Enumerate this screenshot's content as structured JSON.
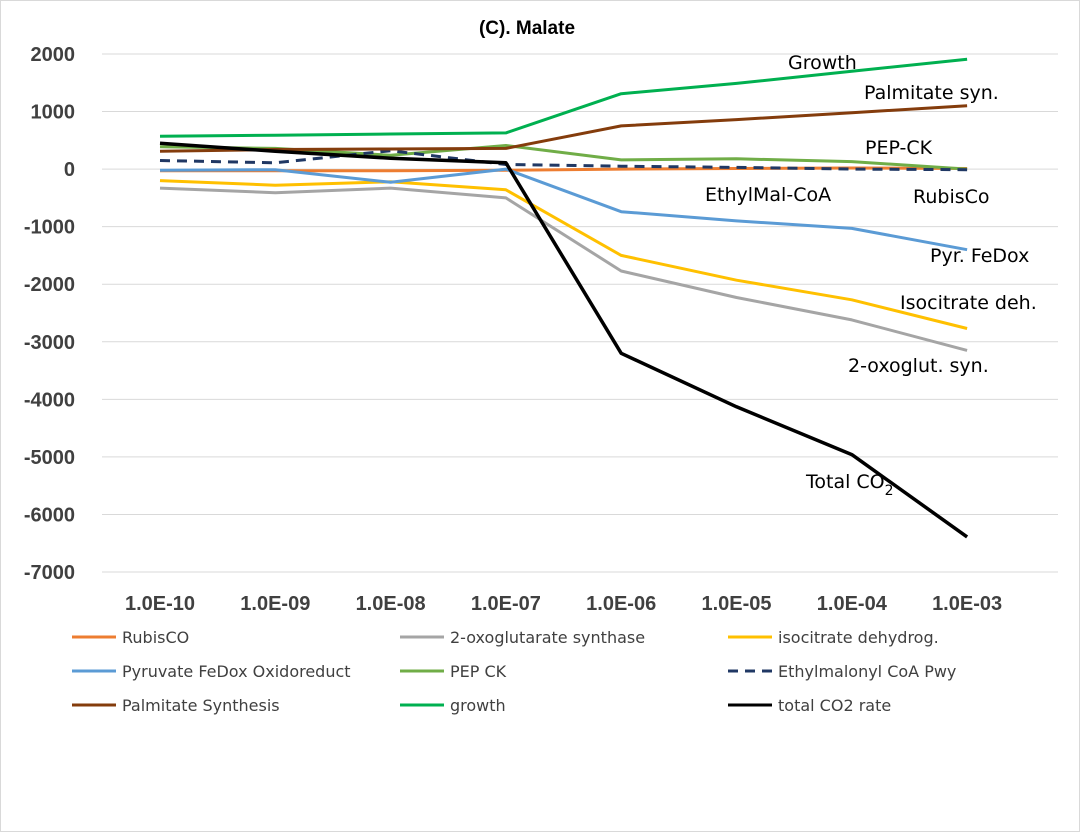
{
  "chart_data": {
    "type": "line",
    "title": "(C). Malate",
    "xlabel": "",
    "ylabel": "",
    "categories": [
      "1.0E-10",
      "1.0E-09",
      "1.0E-08",
      "1.0E-07",
      "1.0E-06",
      "1.0E-05",
      "1.0E-04",
      "1.0E-03"
    ],
    "ylim": [
      -7000,
      2000
    ],
    "yticks": [
      2000,
      1000,
      0,
      -1000,
      -2000,
      -3000,
      -4000,
      -5000,
      -6000,
      -7000
    ],
    "ytick_labels": [
      "2000",
      "1000",
      "0",
      "-1000",
      "-2000",
      "-3000",
      "-4000",
      "-5000",
      "-6000",
      "-7000"
    ],
    "grid": "horizontal",
    "legend_position": "bottom",
    "series": [
      {
        "name": "RubisCO",
        "color": "#ED7D31",
        "dash": false,
        "values": [
          -30,
          -30,
          -30,
          -20,
          0,
          10,
          20,
          10
        ]
      },
      {
        "name": "2-oxoglutarate synthase",
        "color": "#A5A5A5",
        "dash": false,
        "values": [
          -330,
          -410,
          -330,
          -500,
          -1770,
          -2230,
          -2620,
          -3150
        ]
      },
      {
        "name": "isocitrate dehydrog.",
        "color": "#FFC000",
        "dash": false,
        "values": [
          -200,
          -280,
          -220,
          -360,
          -1500,
          -1930,
          -2270,
          -2770
        ]
      },
      {
        "name": "Pyruvate FeDox Oxidoreduct",
        "color": "#5B9BD5",
        "dash": false,
        "values": [
          -20,
          -10,
          -230,
          0,
          -740,
          -900,
          -1030,
          -1400
        ]
      },
      {
        "name": "PEP CK",
        "color": "#70AD47",
        "dash": false,
        "values": [
          390,
          360,
          240,
          410,
          160,
          180,
          130,
          0
        ]
      },
      {
        "name": "Ethylmalonyl CoA Pwy",
        "color": "#203864",
        "dash": true,
        "values": [
          150,
          110,
          320,
          80,
          50,
          30,
          0,
          -10
        ]
      },
      {
        "name": "Palmitate Synthesis",
        "color": "#843C0C",
        "dash": false,
        "values": [
          310,
          340,
          350,
          360,
          750,
          860,
          980,
          1100
        ]
      },
      {
        "name": "growth",
        "color": "#00B050",
        "dash": false,
        "values": [
          570,
          590,
          610,
          630,
          1310,
          1490,
          1700,
          1910
        ]
      },
      {
        "name": "total CO2 rate",
        "color": "#000000",
        "dash": false,
        "values": [
          450,
          310,
          190,
          110,
          -3200,
          -4130,
          -4960,
          -6390
        ]
      }
    ],
    "annotations": [
      {
        "text": "Growth"
      },
      {
        "text": "Palmitate syn."
      },
      {
        "text": "PEP-CK"
      },
      {
        "text": "EthylMal-CoA"
      },
      {
        "text": "RubisCo"
      },
      {
        "text": "Pyr. FeDox"
      },
      {
        "text": "Isocitrate deh."
      },
      {
        "text": "2-oxoglut. syn."
      },
      {
        "text": "Total CO",
        "subscript": "2"
      }
    ]
  }
}
